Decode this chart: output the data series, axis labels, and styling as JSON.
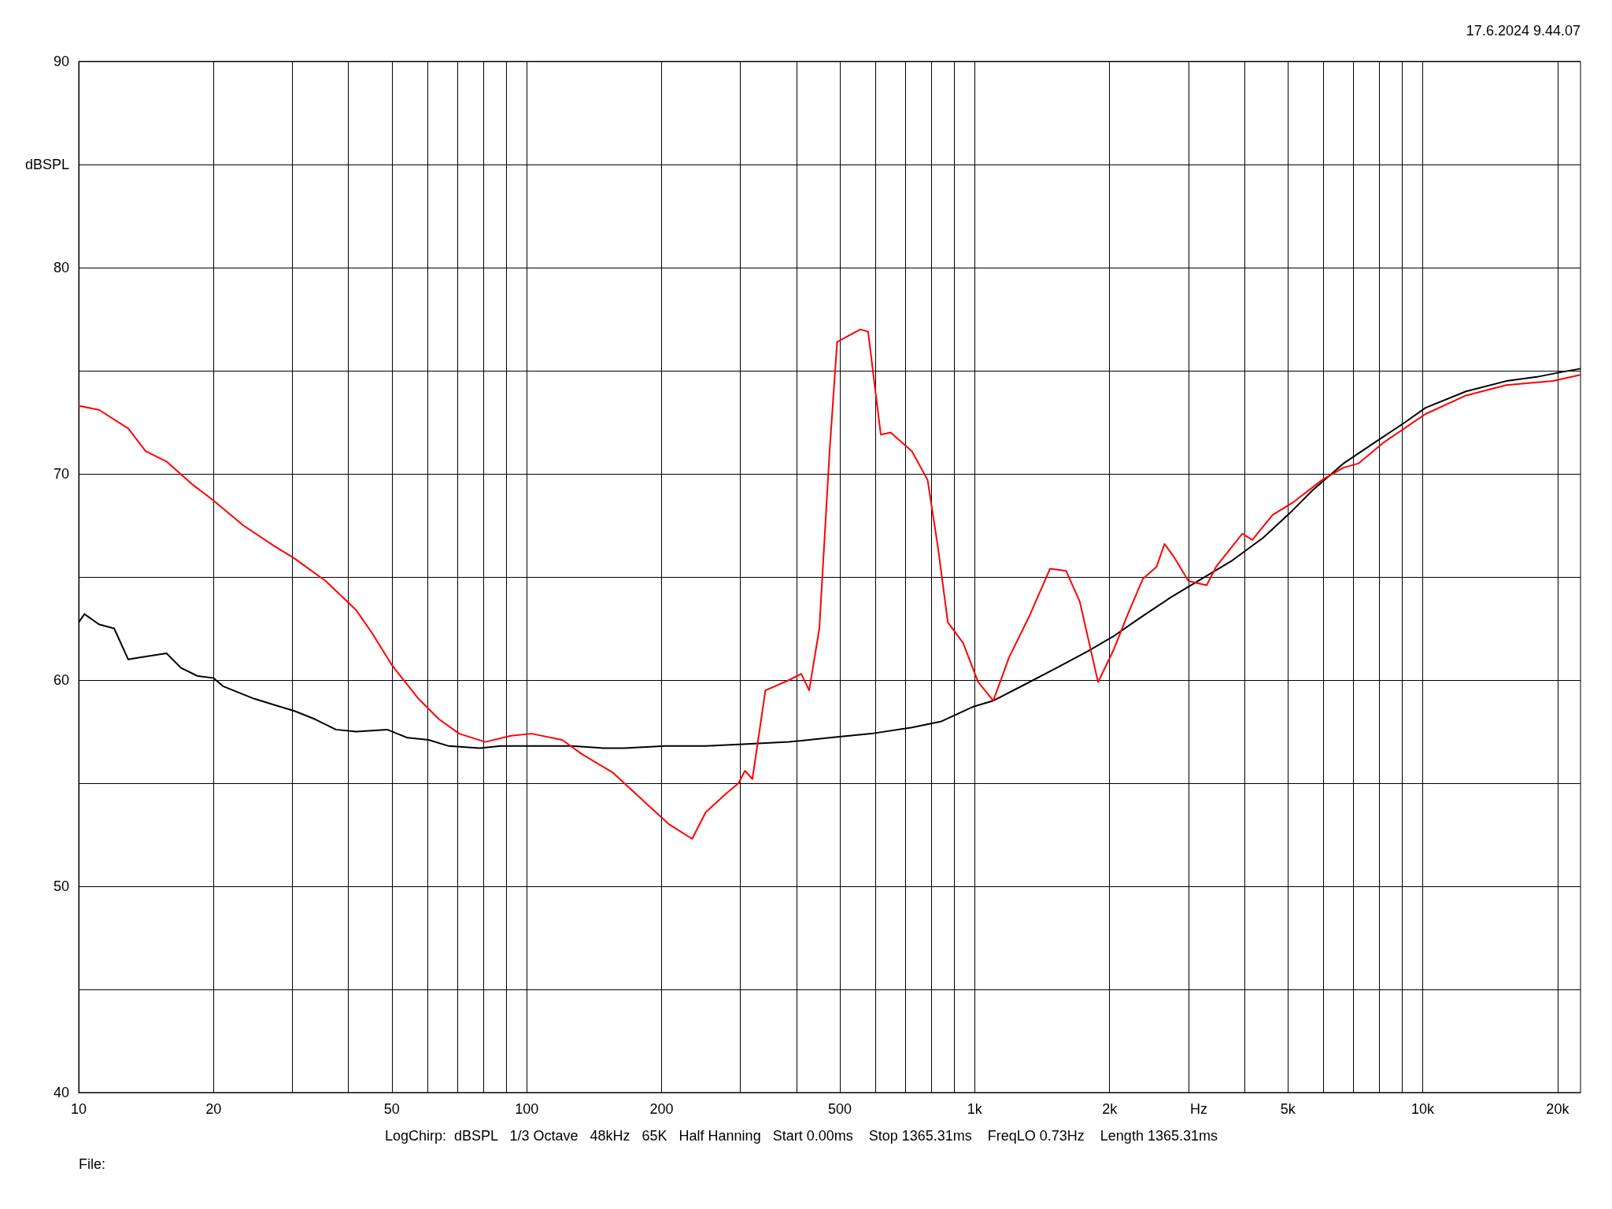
{
  "chart_data": {
    "type": "line",
    "xlabel": "Hz",
    "ylabel": "dBSPL",
    "log": "x",
    "grid": true,
    "marker": "none",
    "line_style": "solid",
    "xlim": [
      10,
      22500
    ],
    "xticks": [
      10,
      20,
      {
        "value": 30,
        "label": null
      },
      {
        "value": 40,
        "label": null
      },
      50,
      {
        "value": 60,
        "label": null
      },
      {
        "value": 70,
        "label": null
      },
      {
        "value": 80,
        "label": null
      },
      {
        "value": 90,
        "label": null
      },
      100,
      200,
      {
        "value": 300,
        "label": null
      },
      {
        "value": 400,
        "label": null
      },
      500,
      {
        "value": 600,
        "label": null
      },
      {
        "value": 700,
        "label": null
      },
      {
        "value": 800,
        "label": null
      },
      {
        "value": 900,
        "label": null
      },
      {
        "value": 1000,
        "label": "1k"
      },
      {
        "value": 2000,
        "label": "2k"
      },
      {
        "value": 3000,
        "label": null
      },
      {
        "value": 4000,
        "label": null
      },
      {
        "value": 5000,
        "label": "5k"
      },
      {
        "value": 6000,
        "label": null
      },
      {
        "value": 7000,
        "label": null
      },
      {
        "value": 8000,
        "label": null
      },
      {
        "value": 9000,
        "label": null
      },
      {
        "value": 10000,
        "label": "10k"
      },
      {
        "value": 20000,
        "label": "20k"
      }
    ],
    "ylim": [
      40,
      90
    ],
    "yticks": [
      40,
      {
        "value": 45,
        "label": null
      },
      50,
      {
        "value": 55,
        "label": null
      },
      60,
      {
        "value": 65,
        "label": null
      },
      70,
      {
        "value": 75,
        "label": null
      },
      80,
      {
        "value": 85,
        "label": null
      },
      90
    ],
    "annotations": [
      "17.6.2024 9.44.07",
      "LogChirp:  dBSPL   1/3 Octave   48kHz   65K   Half Hanning   Start 0.00ms    Stop 1365.31ms    FreqLO 0.73Hz    Length 1365.31ms",
      "File:"
    ],
    "series": [
      {
        "color": "#000000",
        "x": [
          10,
          10.3,
          11.1,
          12,
          12.9,
          13.7,
          15.7,
          16.9,
          18.4,
          20,
          21,
          24.6,
          27.3,
          30.3,
          33.7,
          37.5,
          41.6,
          48.8,
          54.2,
          60.4,
          67,
          78.6,
          87.4,
          100,
          126,
          148,
          165,
          204,
          251,
          310,
          385,
          474,
          587,
          724,
          843,
          990,
          1100,
          1297,
          1525,
          1788,
          2033,
          2333,
          2735,
          3205,
          3757,
          4403,
          5107,
          5673,
          6650,
          7790,
          9131,
          10140,
          12490,
          15360,
          17980,
          20000,
          22500
        ],
        "values": [
          62.8,
          63.2,
          62.7,
          62.5,
          61.0,
          61.1,
          61.3,
          60.6,
          60.2,
          60.1,
          59.7,
          59.1,
          58.8,
          58.5,
          58.1,
          57.6,
          57.5,
          57.6,
          57.2,
          57.1,
          56.8,
          56.7,
          56.8,
          56.8,
          56.8,
          56.7,
          56.7,
          56.8,
          56.8,
          56.9,
          57.0,
          57.2,
          57.4,
          57.7,
          58.0,
          58.7,
          59.0,
          59.8,
          60.6,
          61.4,
          62.1,
          63.0,
          64.0,
          64.9,
          65.8,
          66.9,
          68.2,
          69.2,
          70.5,
          71.5,
          72.5,
          73.2,
          74.0,
          74.5,
          74.7,
          74.9,
          75.1
        ]
      },
      {
        "color": "#ff0000",
        "x": [
          10,
          11.1,
          12.9,
          14.1,
          15.7,
          17.9,
          20,
          23.3,
          27.3,
          30.3,
          35.6,
          41.6,
          45.1,
          50.1,
          57.3,
          63.7,
          70.7,
          80.8,
          92.3,
          102.5,
          120,
          133,
          156,
          183,
          208,
          234,
          251,
          279,
          297,
          307,
          319,
          341,
          385,
          410,
          427,
          450,
          474,
          493,
          555,
          578,
          617,
          649,
          724,
          785,
          827,
          871,
          942,
          1018,
          1100,
          1193,
          1324,
          1473,
          1599,
          1716,
          1885,
          2045,
          2197,
          2372,
          2547,
          2652,
          2778,
          3000,
          3294,
          3459,
          3958,
          4166,
          4619,
          5122,
          5960,
          6650,
          7182,
          8158,
          10140,
          12490,
          15360,
          19520,
          22500
        ],
        "values": [
          73.3,
          73.1,
          72.2,
          71.1,
          70.6,
          69.5,
          68.7,
          67.5,
          66.5,
          65.9,
          64.8,
          63.4,
          62.3,
          60.7,
          59.1,
          58.1,
          57.4,
          57.0,
          57.3,
          57.4,
          57.1,
          56.4,
          55.5,
          54.1,
          53.0,
          52.3,
          53.6,
          54.5,
          55.0,
          55.6,
          55.2,
          59.5,
          60.0,
          60.3,
          59.5,
          62.5,
          71.0,
          76.4,
          77.0,
          76.9,
          71.9,
          72.0,
          71.1,
          69.7,
          66.5,
          62.8,
          61.8,
          59.9,
          59.0,
          61.1,
          63.1,
          65.4,
          65.3,
          63.8,
          59.9,
          61.5,
          63.2,
          64.9,
          65.5,
          66.6,
          66.0,
          64.8,
          64.6,
          65.5,
          67.1,
          66.8,
          68.0,
          68.6,
          69.7,
          70.3,
          70.5,
          71.5,
          72.9,
          73.8,
          74.3,
          74.5,
          74.8
        ]
      }
    ]
  }
}
